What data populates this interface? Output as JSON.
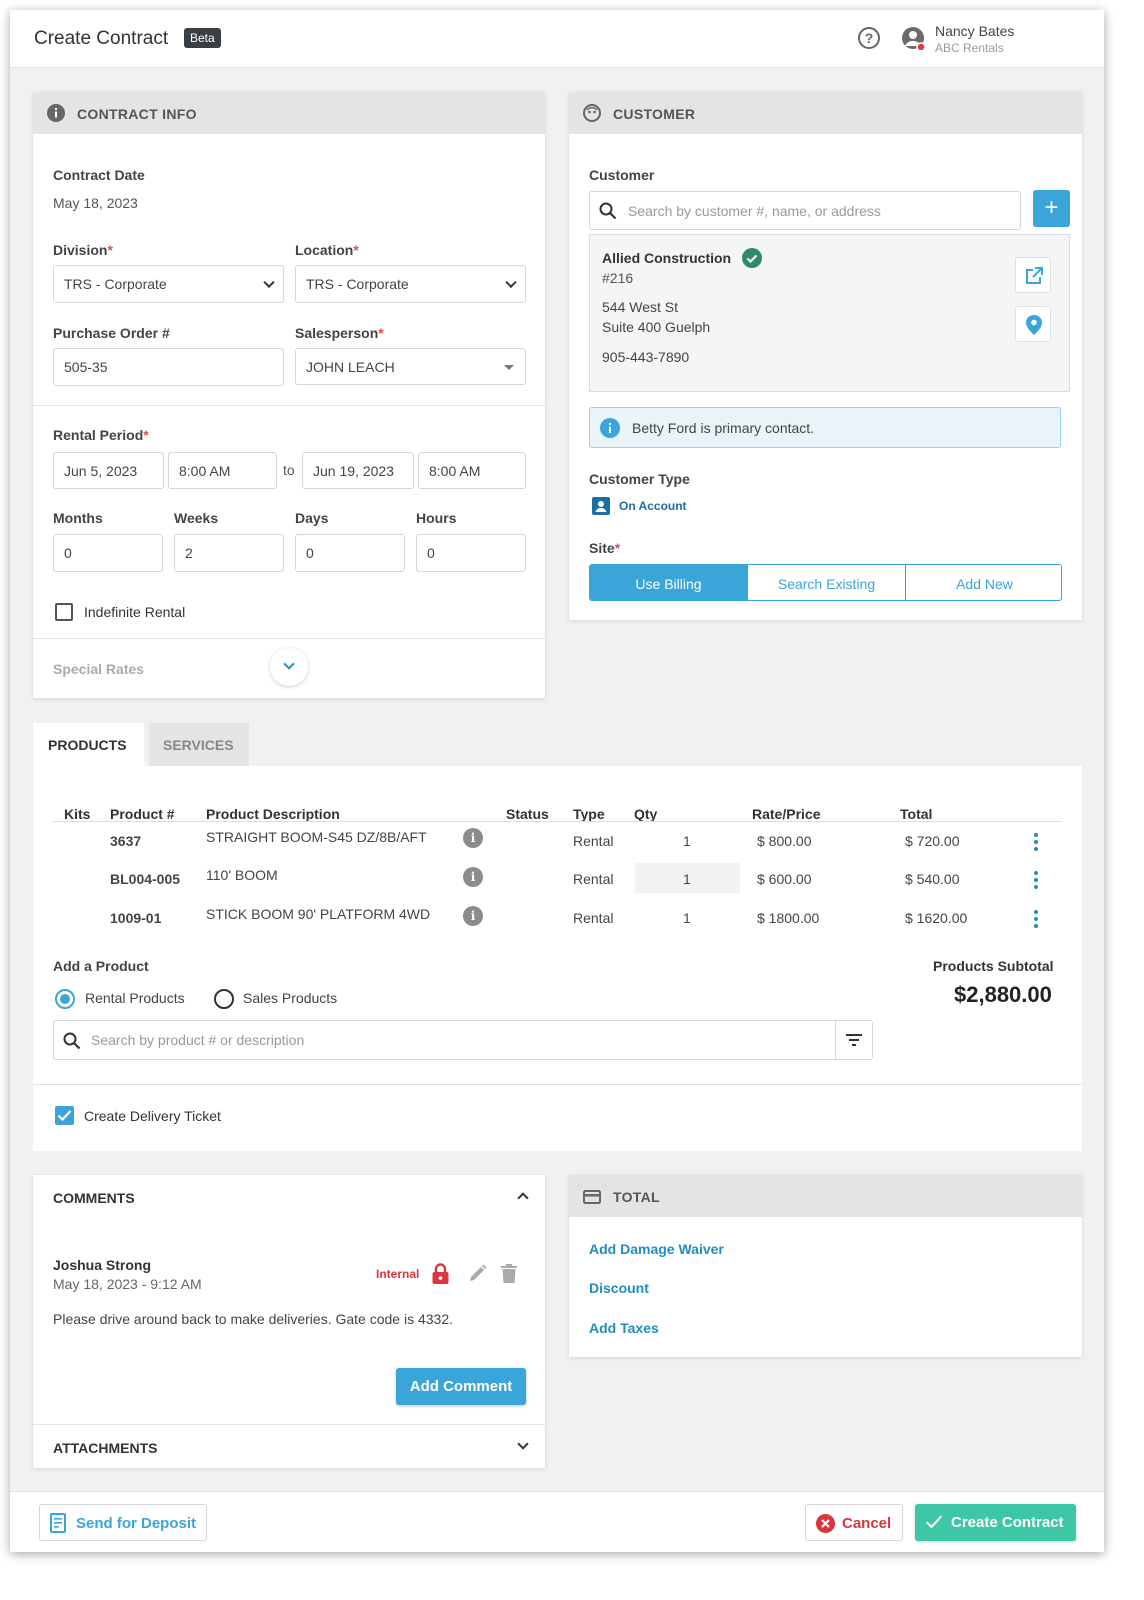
{
  "header": {
    "title": "Create Contract",
    "badge": "Beta",
    "help_icon": "help-circle-icon",
    "user": {
      "name": "Nancy Bates",
      "org": "ABC Rentals"
    }
  },
  "contract_info": {
    "title": "CONTRACT INFO",
    "date_label": "Contract Date",
    "date_value": "May 18, 2023",
    "division_label": "Division",
    "division_value": "TRS - Corporate",
    "location_label": "Location",
    "location_value": "TRS - Corporate",
    "po_label": "Purchase Order #",
    "po_value": "505-35",
    "salesperson_label": "Salesperson",
    "salesperson_value": "JOHN LEACH",
    "rental_period_label": "Rental Period",
    "start_date": "Jun 5, 2023",
    "start_time": "8:00 AM",
    "to": "to",
    "end_date": "Jun 19, 2023",
    "end_time": "8:00 AM",
    "months_label": "Months",
    "months_value": "0",
    "weeks_label": "Weeks",
    "weeks_value": "2",
    "days_label": "Days",
    "days_value": "0",
    "hours_label": "Hours",
    "hours_value": "0",
    "indefinite_label": "Indefinite Rental",
    "special_rates_label": "Special Rates"
  },
  "customer": {
    "title": "CUSTOMER",
    "label": "Customer",
    "search_placeholder": "Search by customer #, name, or address",
    "name": "Allied Construction",
    "number": "#216",
    "address1": "544 West St",
    "address2": "Suite 400 Guelph",
    "phone": "905-443-7890",
    "primary_contact": "Betty Ford is primary contact.",
    "type_label": "Customer Type",
    "type_value": "On Account",
    "site_label": "Site",
    "site_options": [
      "Use Billing",
      "Search Existing",
      "Add New"
    ],
    "site_selected": "Use Billing"
  },
  "tabs": {
    "products": "PRODUCTS",
    "services": "SERVICES",
    "active": "PRODUCTS"
  },
  "products": {
    "columns": [
      "Kits",
      "Product #",
      "Product Description",
      "Status",
      "Type",
      "Qty",
      "Rate/Price",
      "Total"
    ],
    "rows": [
      {
        "number": "3637",
        "description": "STRAIGHT BOOM-S45 DZ/8B/AFT",
        "type": "Rental",
        "qty": "1",
        "rate": "$ 800.00",
        "total": "$ 720.00"
      },
      {
        "number": "BL004-005",
        "description": "110' BOOM",
        "type": "Rental",
        "qty": "1",
        "rate": "$ 600.00",
        "total": "$ 540.00"
      },
      {
        "number": "1009-01",
        "description": "STICK BOOM 90' PLATFORM 4WD",
        "type": "Rental",
        "qty": "1",
        "rate": "$ 1800.00",
        "total": "$ 1620.00"
      }
    ],
    "add_label": "Add a Product",
    "rental_option": "Rental Products",
    "sales_option": "Sales Products",
    "selected_option": "Rental Products",
    "search_placeholder": "Search by product # or description",
    "subtotal_label": "Products Subtotal",
    "subtotal_value": "$2,880.00",
    "delivery_label": "Create Delivery Ticket",
    "delivery_checked": true
  },
  "comments": {
    "title": "COMMENTS",
    "author": "Joshua Strong",
    "timestamp": "May 18, 2023 - 9:12 AM",
    "visibility": "Internal",
    "text": "Please drive around back to make deliveries. Gate code is 4332.",
    "add_button": "Add Comment",
    "attachments_title": "ATTACHMENTS"
  },
  "total": {
    "title": "TOTAL",
    "damage_waiver": "Add Damage Waiver",
    "discount": "Discount",
    "taxes": "Add Taxes"
  },
  "footer": {
    "deposit": "Send for Deposit",
    "cancel": "Cancel",
    "create": "Create Contract"
  },
  "colors": {
    "primary": "#3aa5d8",
    "link": "#1f8dbf",
    "success": "#3ec7a6",
    "danger": "#d9363e",
    "header_bg": "#e3e4e5"
  }
}
